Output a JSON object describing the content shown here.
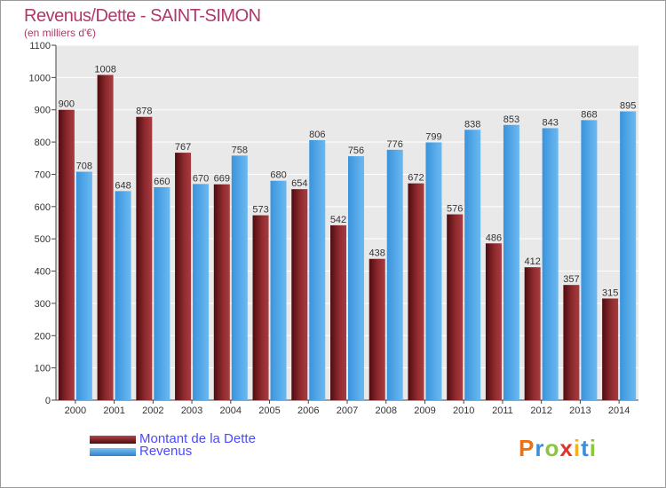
{
  "chart_data": {
    "type": "bar",
    "title": "Revenus/Dette - SAINT-SIMON",
    "subtitle": "(en milliers d'€)",
    "categories": [
      "2000",
      "2001",
      "2002",
      "2003",
      "2004",
      "2005",
      "2006",
      "2007",
      "2008",
      "2009",
      "2010",
      "2011",
      "2012",
      "2013",
      "2014"
    ],
    "series": [
      {
        "name": "Montant de la Dette",
        "color": "#7a1f22",
        "values": [
          900,
          1008,
          878,
          767,
          669,
          573,
          654,
          542,
          438,
          672,
          576,
          486,
          412,
          357,
          315
        ]
      },
      {
        "name": "Revenus",
        "color": "#4aa3e6",
        "values": [
          708,
          648,
          660,
          670,
          758,
          680,
          806,
          756,
          776,
          799,
          838,
          853,
          843,
          868,
          895
        ]
      }
    ],
    "ylim": [
      0,
      1100
    ],
    "yticks": [
      0,
      100,
      200,
      300,
      400,
      500,
      600,
      700,
      800,
      900,
      1000,
      1100
    ],
    "grid": true,
    "legend_position": "bottom-left"
  },
  "logo": {
    "letters": [
      "P",
      "r",
      "o",
      "x",
      "i",
      "t",
      "i"
    ],
    "colors": [
      "#e8731a",
      "#3a8fd8",
      "#8cc63f",
      "#e0342a",
      "#f2b21c",
      "#3a8fd8",
      "#8cc63f"
    ]
  }
}
